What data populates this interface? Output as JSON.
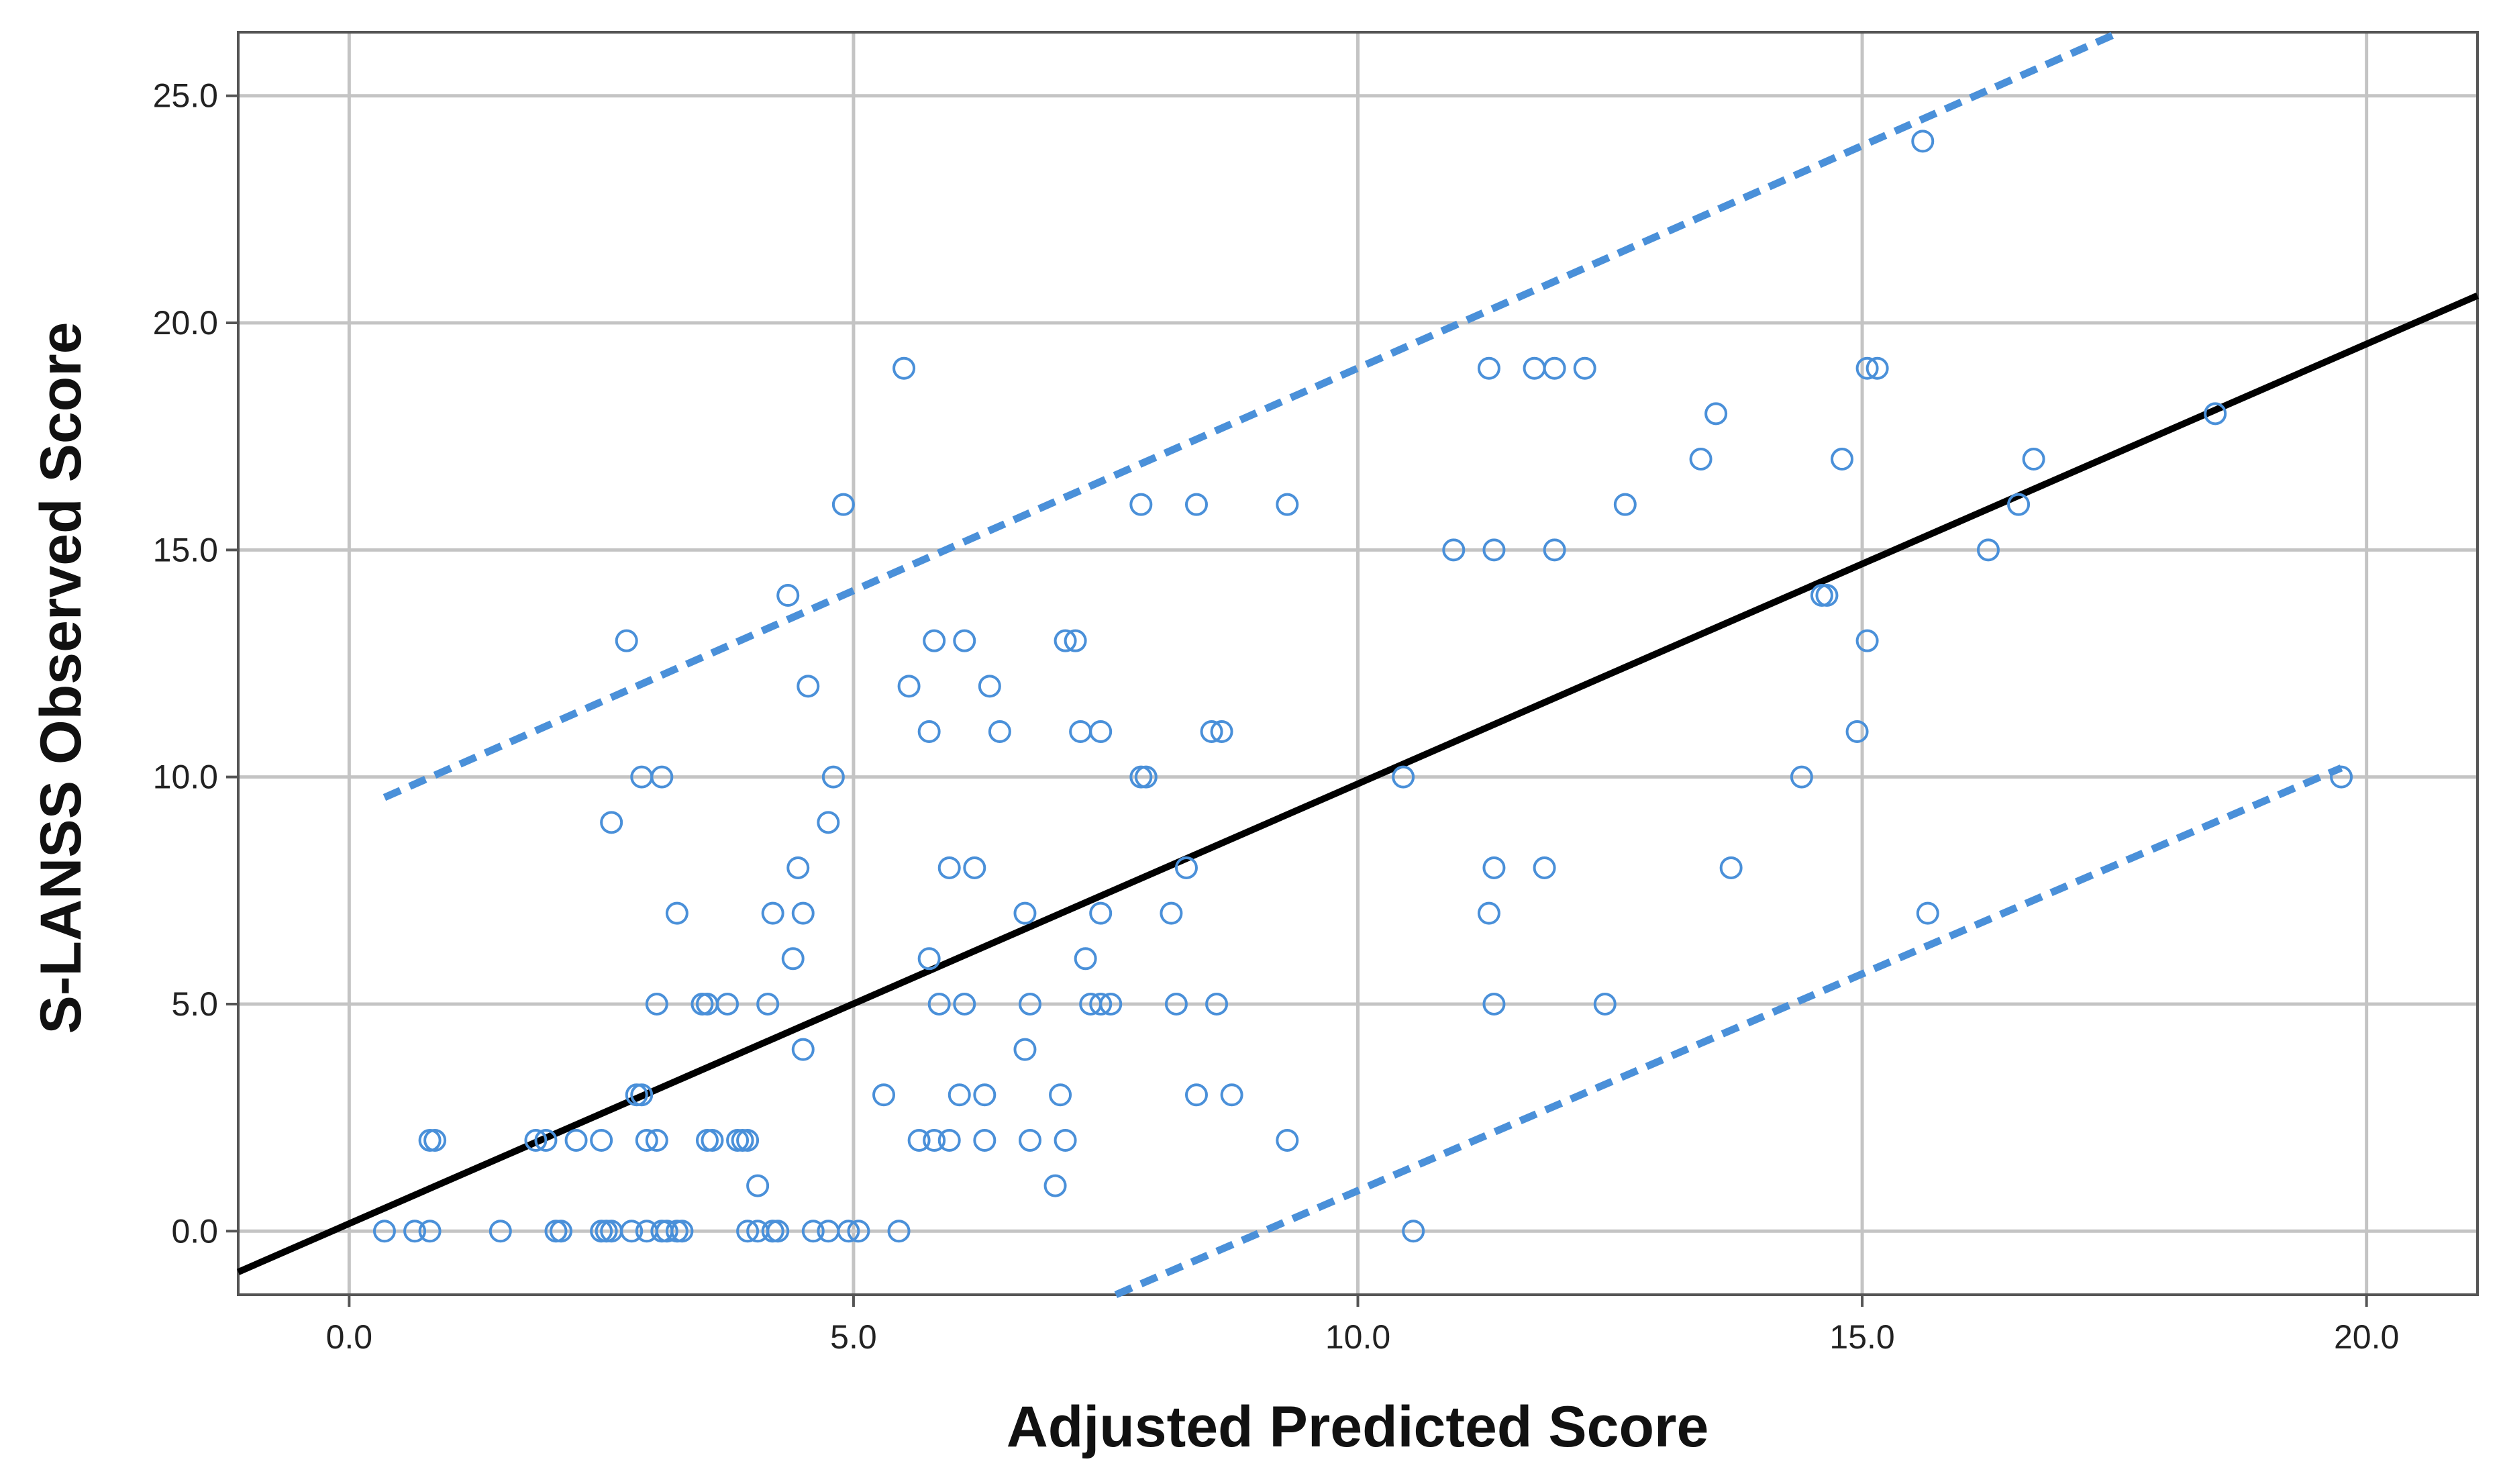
{
  "chart_data": {
    "type": "scatter",
    "xlabel": "Adjusted Predicted Score",
    "ylabel": "S-LANSS Observed Score",
    "xlim": [
      -1.1,
      21.1
    ],
    "ylim": [
      -1.4,
      26.4
    ],
    "x_ticks": [
      "0.0",
      "5.0",
      "10.0",
      "15.0",
      "20.0"
    ],
    "y_ticks": [
      "0.0",
      "5.0",
      "10.0",
      "15.0",
      "20.0",
      "25.0"
    ],
    "grid": true,
    "colors": {
      "points": "#4a90d9",
      "fit_line": "#000000",
      "bounds": "#4a90d9"
    },
    "fit_line": {
      "x": [
        -1.1,
        21.1
      ],
      "y": [
        -0.9,
        20.6
      ]
    },
    "prediction_bounds": [
      {
        "x": [
          0.35,
          17.5
        ],
        "y": [
          9.55,
          26.35
        ]
      },
      {
        "x": [
          7.6,
          19.75
        ],
        "y": [
          -1.4,
          10.2
        ]
      }
    ],
    "points": [
      {
        "x": 0.35,
        "y": 0
      },
      {
        "x": 0.65,
        "y": 0
      },
      {
        "x": 0.8,
        "y": 0
      },
      {
        "x": 1.5,
        "y": 0
      },
      {
        "x": 2.05,
        "y": 0
      },
      {
        "x": 2.1,
        "y": 0
      },
      {
        "x": 2.5,
        "y": 0
      },
      {
        "x": 2.55,
        "y": 0
      },
      {
        "x": 2.6,
        "y": 0
      },
      {
        "x": 2.8,
        "y": 0
      },
      {
        "x": 2.95,
        "y": 0
      },
      {
        "x": 3.1,
        "y": 0
      },
      {
        "x": 3.15,
        "y": 0
      },
      {
        "x": 3.25,
        "y": 0
      },
      {
        "x": 3.3,
        "y": 0
      },
      {
        "x": 3.95,
        "y": 0
      },
      {
        "x": 4.05,
        "y": 0
      },
      {
        "x": 4.2,
        "y": 0
      },
      {
        "x": 4.25,
        "y": 0
      },
      {
        "x": 4.6,
        "y": 0
      },
      {
        "x": 4.75,
        "y": 0
      },
      {
        "x": 4.95,
        "y": 0
      },
      {
        "x": 5.05,
        "y": 0
      },
      {
        "x": 5.45,
        "y": 0
      },
      {
        "x": 10.55,
        "y": 0
      },
      {
        "x": 4.05,
        "y": 1
      },
      {
        "x": 7.0,
        "y": 1
      },
      {
        "x": 0.8,
        "y": 2
      },
      {
        "x": 0.85,
        "y": 2
      },
      {
        "x": 1.85,
        "y": 2
      },
      {
        "x": 1.95,
        "y": 2
      },
      {
        "x": 2.25,
        "y": 2
      },
      {
        "x": 2.5,
        "y": 2
      },
      {
        "x": 2.95,
        "y": 2
      },
      {
        "x": 3.05,
        "y": 2
      },
      {
        "x": 3.55,
        "y": 2
      },
      {
        "x": 3.6,
        "y": 2
      },
      {
        "x": 3.85,
        "y": 2
      },
      {
        "x": 3.9,
        "y": 2
      },
      {
        "x": 3.95,
        "y": 2
      },
      {
        "x": 5.65,
        "y": 2
      },
      {
        "x": 5.8,
        "y": 2
      },
      {
        "x": 5.95,
        "y": 2
      },
      {
        "x": 6.3,
        "y": 2
      },
      {
        "x": 6.75,
        "y": 2
      },
      {
        "x": 7.1,
        "y": 2
      },
      {
        "x": 9.3,
        "y": 2
      },
      {
        "x": 2.85,
        "y": 3
      },
      {
        "x": 2.9,
        "y": 3
      },
      {
        "x": 5.3,
        "y": 3
      },
      {
        "x": 6.05,
        "y": 3
      },
      {
        "x": 6.3,
        "y": 3
      },
      {
        "x": 7.05,
        "y": 3
      },
      {
        "x": 8.4,
        "y": 3
      },
      {
        "x": 8.75,
        "y": 3
      },
      {
        "x": 4.5,
        "y": 4
      },
      {
        "x": 6.7,
        "y": 4
      },
      {
        "x": 3.05,
        "y": 5
      },
      {
        "x": 3.5,
        "y": 5
      },
      {
        "x": 3.55,
        "y": 5
      },
      {
        "x": 3.75,
        "y": 5
      },
      {
        "x": 4.15,
        "y": 5
      },
      {
        "x": 5.85,
        "y": 5
      },
      {
        "x": 6.1,
        "y": 5
      },
      {
        "x": 6.75,
        "y": 5
      },
      {
        "x": 7.35,
        "y": 5
      },
      {
        "x": 7.45,
        "y": 5
      },
      {
        "x": 7.55,
        "y": 5
      },
      {
        "x": 8.2,
        "y": 5
      },
      {
        "x": 8.6,
        "y": 5
      },
      {
        "x": 11.35,
        "y": 5
      },
      {
        "x": 12.45,
        "y": 5
      },
      {
        "x": 4.4,
        "y": 6
      },
      {
        "x": 5.75,
        "y": 6
      },
      {
        "x": 7.3,
        "y": 6
      },
      {
        "x": 3.25,
        "y": 7
      },
      {
        "x": 4.2,
        "y": 7
      },
      {
        "x": 4.5,
        "y": 7
      },
      {
        "x": 6.7,
        "y": 7
      },
      {
        "x": 7.45,
        "y": 7
      },
      {
        "x": 8.15,
        "y": 7
      },
      {
        "x": 11.3,
        "y": 7
      },
      {
        "x": 15.65,
        "y": 7
      },
      {
        "x": 4.45,
        "y": 8
      },
      {
        "x": 5.95,
        "y": 8
      },
      {
        "x": 6.2,
        "y": 8
      },
      {
        "x": 8.3,
        "y": 8
      },
      {
        "x": 11.35,
        "y": 8
      },
      {
        "x": 11.85,
        "y": 8
      },
      {
        "x": 13.7,
        "y": 8
      },
      {
        "x": 2.6,
        "y": 9
      },
      {
        "x": 4.75,
        "y": 9
      },
      {
        "x": 2.9,
        "y": 10
      },
      {
        "x": 3.1,
        "y": 10
      },
      {
        "x": 4.8,
        "y": 10
      },
      {
        "x": 7.85,
        "y": 10
      },
      {
        "x": 7.9,
        "y": 10
      },
      {
        "x": 10.45,
        "y": 10
      },
      {
        "x": 14.4,
        "y": 10
      },
      {
        "x": 19.75,
        "y": 10
      },
      {
        "x": 5.75,
        "y": 11
      },
      {
        "x": 6.45,
        "y": 11
      },
      {
        "x": 7.25,
        "y": 11
      },
      {
        "x": 7.45,
        "y": 11
      },
      {
        "x": 8.55,
        "y": 11
      },
      {
        "x": 8.65,
        "y": 11
      },
      {
        "x": 14.95,
        "y": 11
      },
      {
        "x": 4.55,
        "y": 12
      },
      {
        "x": 5.55,
        "y": 12
      },
      {
        "x": 6.35,
        "y": 12
      },
      {
        "x": 2.75,
        "y": 13
      },
      {
        "x": 5.8,
        "y": 13
      },
      {
        "x": 6.1,
        "y": 13
      },
      {
        "x": 7.1,
        "y": 13
      },
      {
        "x": 7.2,
        "y": 13
      },
      {
        "x": 15.05,
        "y": 13
      },
      {
        "x": 4.35,
        "y": 14
      },
      {
        "x": 14.6,
        "y": 14
      },
      {
        "x": 14.65,
        "y": 14
      },
      {
        "x": 10.95,
        "y": 15
      },
      {
        "x": 11.35,
        "y": 15
      },
      {
        "x": 11.95,
        "y": 15
      },
      {
        "x": 16.25,
        "y": 15
      },
      {
        "x": 4.9,
        "y": 16
      },
      {
        "x": 7.85,
        "y": 16
      },
      {
        "x": 8.4,
        "y": 16
      },
      {
        "x": 9.3,
        "y": 16
      },
      {
        "x": 12.65,
        "y": 16
      },
      {
        "x": 16.55,
        "y": 16
      },
      {
        "x": 13.4,
        "y": 17
      },
      {
        "x": 14.8,
        "y": 17
      },
      {
        "x": 16.7,
        "y": 17
      },
      {
        "x": 13.55,
        "y": 18
      },
      {
        "x": 18.5,
        "y": 18
      },
      {
        "x": 5.5,
        "y": 19
      },
      {
        "x": 11.3,
        "y": 19
      },
      {
        "x": 11.75,
        "y": 19
      },
      {
        "x": 11.95,
        "y": 19
      },
      {
        "x": 12.25,
        "y": 19
      },
      {
        "x": 15.05,
        "y": 19
      },
      {
        "x": 15.15,
        "y": 19
      },
      {
        "x": 15.6,
        "y": 24
      }
    ]
  }
}
